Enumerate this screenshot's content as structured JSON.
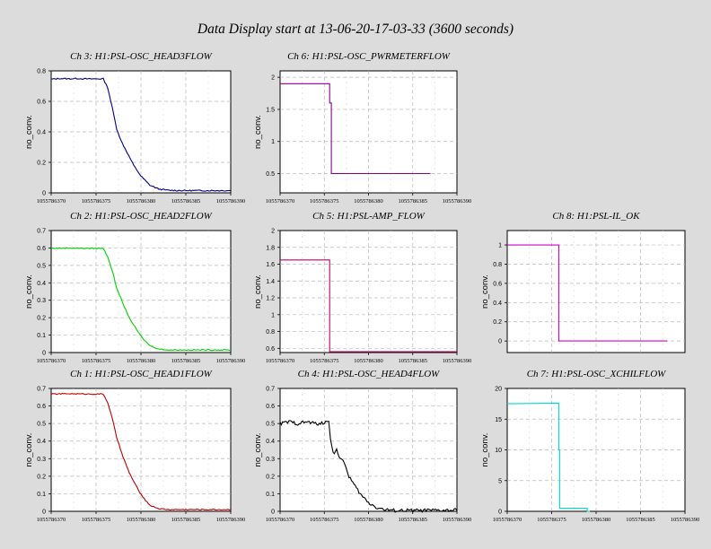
{
  "page": {
    "title": "Data Display start at 13-06-20-17-03-33 (3600 seconds)"
  },
  "chart_data": [
    {
      "type": "line",
      "title": "Ch 3: H1:PSL-OSC_HEAD3FLOW",
      "ylabel": "no_conv.",
      "color": "#00008b",
      "noise": 0.004,
      "xlim": [
        1055786370,
        1055786390
      ],
      "x_ticks": [
        "1055786370",
        "1055786375",
        "1055786380",
        "1055786385",
        "1055786390"
      ],
      "ylim": [
        0,
        0.8
      ],
      "y_ticks": [
        "0",
        "0.2",
        "0.4",
        "0.6",
        "0.8"
      ],
      "y_tick_values": [
        0,
        0.2,
        0.4,
        0.6,
        0.8
      ],
      "series": [
        {
          "x": [
            1055786370,
            1055786371,
            1055786372,
            1055786373,
            1055786374,
            1055786375.8,
            1055786376.3,
            1055786376.8,
            1055786377.3,
            1055786377.8,
            1055786378.5,
            1055786379.2,
            1055786380,
            1055786381,
            1055786382,
            1055786383,
            1055786385,
            1055786388,
            1055786390
          ],
          "y": [
            0.745,
            0.75,
            0.748,
            0.75,
            0.747,
            0.748,
            0.69,
            0.56,
            0.42,
            0.34,
            0.26,
            0.18,
            0.11,
            0.05,
            0.025,
            0.017,
            0.015,
            0.015,
            0.015
          ]
        }
      ]
    },
    {
      "type": "line",
      "title": "Ch 6: H1:PSL-OSC_PWRMETERFLOW",
      "ylabel": "no_conv.",
      "color": "#8b008b",
      "noise": 0,
      "xlim": [
        1055786370,
        1055786390
      ],
      "x_ticks": [
        "1055786370",
        "1055786375",
        "1055786380",
        "1055786385",
        "1055786390"
      ],
      "ylim": [
        0.2,
        2.1
      ],
      "y_ticks": [
        "0.5",
        "1",
        "1.5",
        "2"
      ],
      "y_tick_values": [
        0.5,
        1,
        1.5,
        2
      ],
      "series": [
        {
          "x": [
            1055786370,
            1055786375.6,
            1055786375.6,
            1055786375.8,
            1055786375.8,
            1055786387
          ],
          "y": [
            1.9,
            1.9,
            1.6,
            1.6,
            0.5,
            0.5
          ]
        }
      ]
    },
    {
      "type": "line",
      "title": "Ch 2: H1:PSL-OSC_HEAD2FLOW",
      "ylabel": "no_conv.",
      "color": "#00d000",
      "noise": 0.003,
      "xlim": [
        1055786370,
        1055786390
      ],
      "x_ticks": [
        "1055786370",
        "1055786375",
        "1055786380",
        "1055786385",
        "1055786390"
      ],
      "ylim": [
        0,
        0.7
      ],
      "y_ticks": [
        "0",
        "0.1",
        "0.2",
        "0.3",
        "0.4",
        "0.5",
        "0.6",
        "0.7"
      ],
      "y_tick_values": [
        0,
        0.1,
        0.2,
        0.3,
        0.4,
        0.5,
        0.6,
        0.7
      ],
      "series": [
        {
          "x": [
            1055786370,
            1055786372,
            1055786374,
            1055786375.8,
            1055786376.3,
            1055786376.8,
            1055786377.3,
            1055786378,
            1055786378.7,
            1055786379.4,
            1055786380.2,
            1055786381,
            1055786382,
            1055786383,
            1055786385,
            1055786388,
            1055786390
          ],
          "y": [
            0.598,
            0.6,
            0.598,
            0.598,
            0.55,
            0.47,
            0.37,
            0.28,
            0.2,
            0.14,
            0.08,
            0.04,
            0.02,
            0.015,
            0.015,
            0.015,
            0.015
          ]
        }
      ]
    },
    {
      "type": "line",
      "title": "Ch 5: H1:PSL-AMP_FLOW",
      "ylabel": "no_conv.",
      "color": "#c00060",
      "noise": 0,
      "xlim": [
        1055786370,
        1055786390
      ],
      "x_ticks": [
        "1055786370",
        "1055786375",
        "1055786380",
        "1055786385",
        "1055786390"
      ],
      "ylim": [
        0.55,
        2
      ],
      "y_ticks": [
        "0.6",
        "0.8",
        "1",
        "1.2",
        "1.4",
        "1.6",
        "1.8",
        "2"
      ],
      "y_tick_values": [
        0.6,
        0.8,
        1,
        1.2,
        1.4,
        1.6,
        1.8,
        2
      ],
      "series": [
        {
          "x": [
            1055786370,
            1055786375.6,
            1055786375.6,
            1055786390
          ],
          "y": [
            1.65,
            1.65,
            0.56,
            0.56
          ]
        }
      ]
    },
    {
      "type": "line",
      "title": "Ch 8: H1:PSL-IL_OK",
      "ylabel": "no_conv.",
      "color": "#cc00cc",
      "noise": 0,
      "xlim": [
        1055786370,
        1055786390
      ],
      "x_ticks": [],
      "ylim": [
        -0.12,
        1.15
      ],
      "y_ticks": [
        "0",
        "0.2",
        "0.4",
        "0.6",
        "0.8",
        "1"
      ],
      "y_tick_values": [
        0,
        0.2,
        0.4,
        0.6,
        0.8,
        1
      ],
      "series": [
        {
          "x": [
            1055786370,
            1055786375.8,
            1055786375.8,
            1055786388
          ],
          "y": [
            1,
            1,
            0,
            0
          ]
        }
      ]
    },
    {
      "type": "line",
      "title": "Ch 1: H1:PSL-OSC_HEAD1FLOW",
      "ylabel": "no_conv.",
      "color": "#c00000",
      "noise": 0.003,
      "xlim": [
        1055786370,
        1055786390
      ],
      "x_ticks": [
        "1055786370",
        "1055786375",
        "1055786380",
        "1055786385",
        "1055786390"
      ],
      "ylim": [
        0,
        0.7
      ],
      "y_ticks": [
        "0",
        "0.1",
        "0.2",
        "0.3",
        "0.4",
        "0.5",
        "0.6",
        "0.7"
      ],
      "y_tick_values": [
        0,
        0.1,
        0.2,
        0.3,
        0.4,
        0.5,
        0.6,
        0.7
      ],
      "series": [
        {
          "x": [
            1055786370,
            1055786372,
            1055786374,
            1055786375.8,
            1055786376.3,
            1055786376.8,
            1055786377.3,
            1055786378,
            1055786378.7,
            1055786379.4,
            1055786380.2,
            1055786381,
            1055786382,
            1055786383,
            1055786385,
            1055786388,
            1055786390
          ],
          "y": [
            0.668,
            0.67,
            0.668,
            0.668,
            0.62,
            0.53,
            0.42,
            0.31,
            0.22,
            0.15,
            0.08,
            0.035,
            0.015,
            0.01,
            0.01,
            0.01,
            0.01
          ]
        }
      ]
    },
    {
      "type": "line",
      "title": "Ch 4: H1:PSL-OSC_HEAD4FLOW",
      "ylabel": "no_conv.",
      "color": "#000000",
      "noise": 0.01,
      "xlim": [
        1055786370,
        1055786390
      ],
      "x_ticks": [
        "1055786370",
        "1055786375",
        "1055786380",
        "1055786385",
        "1055786390"
      ],
      "ylim": [
        0,
        0.7
      ],
      "y_ticks": [
        "0",
        "0.1",
        "0.2",
        "0.3",
        "0.4",
        "0.5",
        "0.6",
        "0.7"
      ],
      "y_tick_values": [
        0,
        0.1,
        0.2,
        0.3,
        0.4,
        0.5,
        0.6,
        0.7
      ],
      "series": [
        {
          "x": [
            1055786370,
            1055786371,
            1055786372,
            1055786373,
            1055786374,
            1055786375,
            1055786375.5,
            1055786375.7,
            1055786376,
            1055786376.4,
            1055786376.8,
            1055786377.3,
            1055786377.8,
            1055786378.5,
            1055786379.2,
            1055786380,
            1055786381,
            1055786382,
            1055786383,
            1055786385,
            1055786390
          ],
          "y": [
            0.5,
            0.51,
            0.5,
            0.51,
            0.5,
            0.5,
            0.52,
            0.42,
            0.33,
            0.35,
            0.3,
            0.27,
            0.2,
            0.14,
            0.09,
            0.05,
            0.02,
            0.008,
            0.005,
            0.005,
            0.005
          ]
        }
      ]
    },
    {
      "type": "line",
      "title": "Ch 7: H1:PSL-OSC_XCHILFLOW",
      "ylabel": "no_conv.",
      "color": "#00d8d8",
      "noise": 0,
      "xlim": [
        1055786370,
        1055786390
      ],
      "x_ticks": [
        "1055786370",
        "1055786375",
        "1055786380",
        "1055786385",
        "1055786390"
      ],
      "ylim": [
        0,
        20
      ],
      "y_ticks": [
        "0",
        "5",
        "10",
        "15",
        "20"
      ],
      "y_tick_values": [
        0,
        5,
        10,
        15,
        20
      ],
      "series": [
        {
          "x": [
            1055786370,
            1055786375.8,
            1055786375.8,
            1055786375.9,
            1055786375.9,
            1055786379,
            1055786379,
            1055786379.3
          ],
          "y": [
            17.5,
            17.6,
            10,
            10,
            0.5,
            0.5,
            0,
            0
          ]
        }
      ]
    }
  ]
}
